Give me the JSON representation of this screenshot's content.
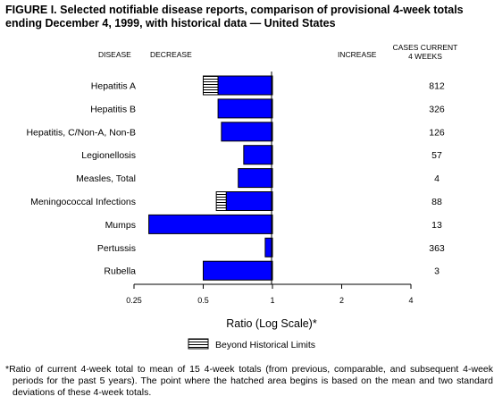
{
  "title": "FIGURE I. Selected notifiable disease reports, comparison of provisional 4-week totals ending December 4, 1999, with historical data — United States",
  "headers": {
    "disease": "DISEASE",
    "decrease": "DECREASE",
    "increase": "INCREASE",
    "cases_line1": "CASES CURRENT",
    "cases_line2": "4 WEEKS"
  },
  "legend_label": "Beyond Historical Limits",
  "footnote": "*Ratio of current 4-week total to mean of 15 4-week totals (from previous, comparable, and subsequent 4-week periods for the past 5 years). The point where the hatched area begins is based on the mean and two standard deviations of these 4-week totals.",
  "chart_data": {
    "type": "bar",
    "orientation": "horizontal",
    "xscale": "log2",
    "xlim": [
      0.25,
      4
    ],
    "xticks": [
      "0.25",
      "0.5",
      "1",
      "2",
      "4"
    ],
    "xlabel": "Ratio (Log Scale)*",
    "categories": [
      "Hepatitis A",
      "Hepatitis B",
      "Hepatitis, C/Non-A, Non-B",
      "Legionellosis",
      "Measles, Total",
      "Meningococcal Infections",
      "Mumps",
      "Pertussis",
      "Rubella"
    ],
    "ratio": [
      0.5,
      0.58,
      0.6,
      0.75,
      0.71,
      0.57,
      0.29,
      0.93,
      0.5
    ],
    "hatch_start": [
      0.58,
      null,
      null,
      null,
      null,
      0.63,
      null,
      null,
      null
    ],
    "cases_current_4_weeks": [
      "812",
      "326",
      "126",
      "57",
      "4",
      "88",
      "13",
      "363",
      "3"
    ],
    "bar_color": "#0000ff"
  }
}
